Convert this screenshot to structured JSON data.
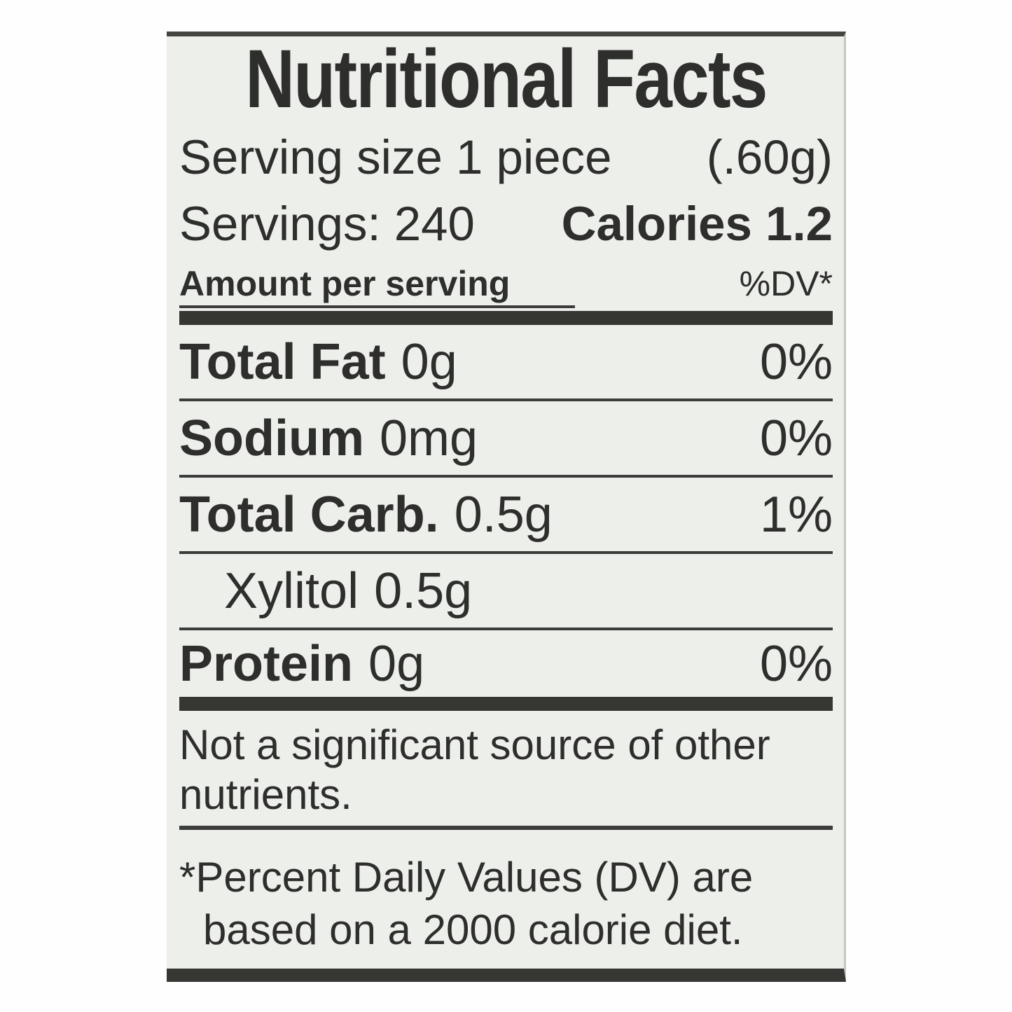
{
  "label": {
    "title": "Nutritional Facts",
    "serving_size": {
      "text": "Serving size 1 piece",
      "weight": "(.60g)"
    },
    "servings_line": {
      "servings": "Servings: 240",
      "calories": "Calories 1.2"
    },
    "columns": {
      "left": "Amount per serving",
      "right": "%DV*"
    },
    "rows": [
      {
        "name": "Total Fat",
        "value": "0g",
        "dv": "0%"
      },
      {
        "name": "Sodium",
        "value": "0mg",
        "dv": "0%"
      },
      {
        "name": "Total Carb.",
        "value": "0.5g",
        "dv": "1%"
      },
      {
        "name": "Xylitol",
        "value": "0.5g",
        "dv": ""
      },
      {
        "name": "Protein",
        "value": "0g",
        "dv": "0%"
      }
    ],
    "note": {
      "line1": "Not a significant source of other",
      "line2": "nutrients."
    },
    "footnote": {
      "line1": "*Percent Daily Values (DV) are",
      "line2": "based on a 2000 calorie diet."
    },
    "colors": {
      "label_background": "#edefeb",
      "ink": "#2e2e2c",
      "bar": "#363633",
      "page_background": "#fefefe"
    }
  }
}
